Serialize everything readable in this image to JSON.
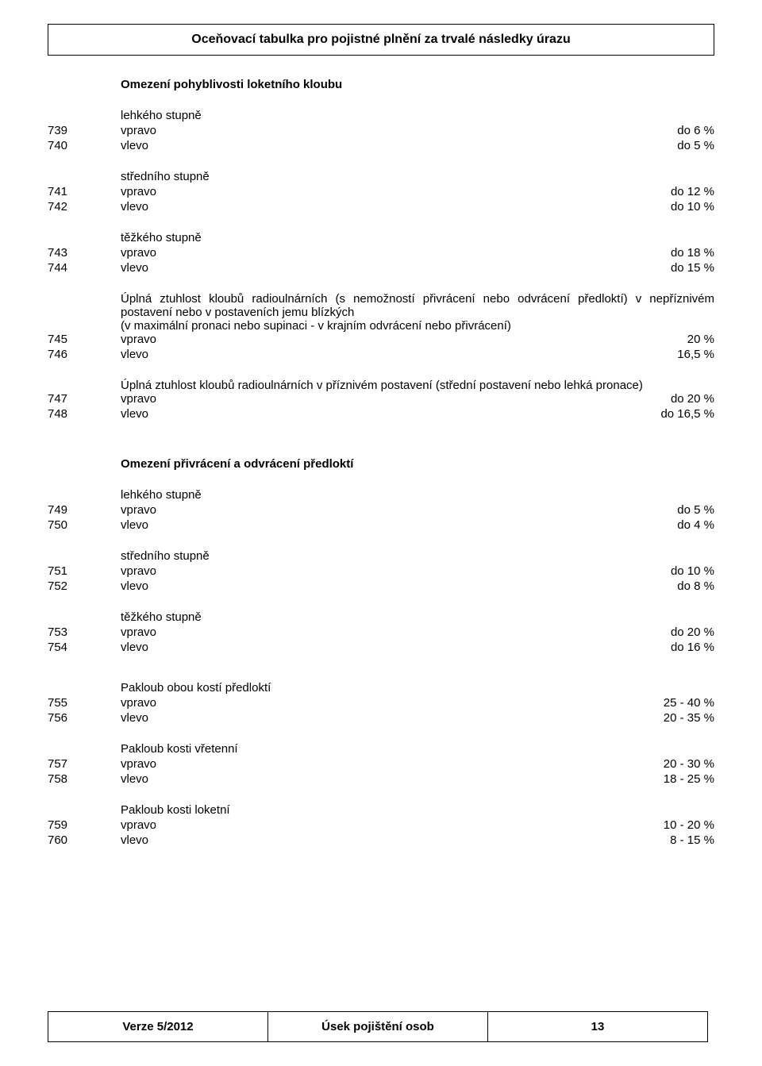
{
  "title": "Oceňovací tabulka pro pojistné plnění za trvalé následky úrazu",
  "section1_heading": "Omezení pohyblivosti loketního kloubu",
  "g1": {
    "label": "lehkého stupně",
    "r1": {
      "num": "739",
      "label": "vpravo",
      "val": "do 6 %"
    },
    "r2": {
      "num": "740",
      "label": "vlevo",
      "val": "do 5 %"
    }
  },
  "g2": {
    "label": "středního stupně",
    "r1": {
      "num": "741",
      "label": "vpravo",
      "val": "do 12 %"
    },
    "r2": {
      "num": "742",
      "label": "vlevo",
      "val": "do 10 %"
    }
  },
  "g3": {
    "label": "těžkého stupně",
    "r1": {
      "num": "743",
      "label": "vpravo",
      "val": "do 18 %"
    },
    "r2": {
      "num": "744",
      "label": "vlevo",
      "val": "do 15 %"
    }
  },
  "g4": {
    "text1": "Úplná ztuhlost kloubů radioulnárních (s nemožností přivrácení nebo odvrácení předloktí) v nepříznivém postavení nebo v postaveních jemu blízkých",
    "text2": "(v maximální pronaci nebo supinaci - v krajním odvrácení nebo přivrácení)",
    "r1": {
      "num": "745",
      "label": "vpravo",
      "val": "20 %"
    },
    "r2": {
      "num": "746",
      "label": "vlevo",
      "val": "16,5 %"
    }
  },
  "g5": {
    "text": "Úplná ztuhlost kloubů radioulnárních v příznivém postavení (střední postavení nebo lehká pronace)",
    "r1": {
      "num": "747",
      "label": "vpravo",
      "val": "do 20 %"
    },
    "r2": {
      "num": "748",
      "label": "vlevo",
      "val": "do 16,5 %"
    }
  },
  "section2_heading": "Omezení přivrácení a odvrácení předloktí",
  "g6": {
    "label": "lehkého stupně",
    "r1": {
      "num": "749",
      "label": "vpravo",
      "val": "do 5 %"
    },
    "r2": {
      "num": "750",
      "label": "vlevo",
      "val": "do 4 %"
    }
  },
  "g7": {
    "label": "středního stupně",
    "r1": {
      "num": "751",
      "label": "vpravo",
      "val": "do 10 %"
    },
    "r2": {
      "num": "752",
      "label": "vlevo",
      "val": "do 8 %"
    }
  },
  "g8": {
    "label": "těžkého stupně",
    "r1": {
      "num": "753",
      "label": "vpravo",
      "val": "do 20 %"
    },
    "r2": {
      "num": "754",
      "label": "vlevo",
      "val": "do 16 %"
    }
  },
  "g9": {
    "label": "Pakloub obou kostí předloktí",
    "r1": {
      "num": "755",
      "label": "vpravo",
      "val": "25 - 40 %"
    },
    "r2": {
      "num": "756",
      "label": "vlevo",
      "val": "20 - 35 %"
    }
  },
  "g10": {
    "label": "Pakloub kosti vřetenní",
    "r1": {
      "num": "757",
      "label": "vpravo",
      "val": "20 - 30 %"
    },
    "r2": {
      "num": "758",
      "label": "vlevo",
      "val": "18 - 25 %"
    }
  },
  "g11": {
    "label": "Pakloub kosti loketní",
    "r1": {
      "num": "759",
      "label": "vpravo",
      "val": "10 - 20 %"
    },
    "r2": {
      "num": "760",
      "label": "vlevo",
      "val": " 8  - 15 %"
    }
  },
  "footer": {
    "version": "Verze 5/2012",
    "dept": "Úsek pojištění osob",
    "page": "13"
  }
}
